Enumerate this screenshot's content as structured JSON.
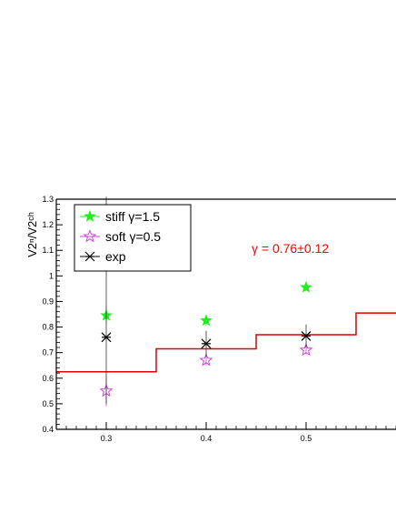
{
  "chart_data": {
    "type": "scatter",
    "ylabel": "V2ⁿ/V2ᶜʰ",
    "xlim": [
      0.25,
      0.59
    ],
    "ylim": [
      0.4,
      1.3
    ],
    "x_ticks": [
      "0.3",
      "0.4",
      "0.5"
    ],
    "y_ticks": [
      "0.4",
      "0.5",
      "0.6",
      "0.7",
      "0.8",
      "0.9",
      "1",
      "1.1",
      "1.2",
      "1.3"
    ],
    "legend_position": "top-left",
    "grid": false,
    "series": [
      {
        "name": "stiff γ=1.5",
        "marker": "filled-star",
        "color": "#22ee22",
        "points": [
          {
            "x": 0.3,
            "y": 0.845,
            "err": 0.035
          },
          {
            "x": 0.4,
            "y": 0.825,
            "err": 0.02
          },
          {
            "x": 0.5,
            "y": 0.955,
            "err": 0.015
          }
        ]
      },
      {
        "name": "soft γ=0.5",
        "marker": "open-star",
        "color": "#cc44dd",
        "points": [
          {
            "x": 0.3,
            "y": 0.55,
            "err": 0.06
          },
          {
            "x": 0.4,
            "y": 0.67,
            "err": 0.02
          },
          {
            "x": 0.5,
            "y": 0.71,
            "err": 0.015
          }
        ]
      },
      {
        "name": "exp",
        "marker": "asterisk",
        "color": "#000000",
        "points": [
          {
            "x": 0.3,
            "y": 0.76,
            "err_low": 0.26,
            "err_high": 0.55
          },
          {
            "x": 0.4,
            "y": 0.735,
            "err": 0.05
          },
          {
            "x": 0.5,
            "y": 0.765,
            "err": 0.045
          }
        ]
      }
    ],
    "step_line": {
      "color": "#dd0000",
      "segments": [
        {
          "x0": 0.25,
          "x1": 0.35,
          "y": 0.625
        },
        {
          "x0": 0.35,
          "x1": 0.45,
          "y": 0.715
        },
        {
          "x0": 0.45,
          "x1": 0.55,
          "y": 0.77
        },
        {
          "x0": 0.55,
          "x1": 0.59,
          "y": 0.855
        }
      ]
    },
    "annotation": {
      "text": "γ = 0.76±0.12",
      "color": "#ff0000"
    }
  }
}
